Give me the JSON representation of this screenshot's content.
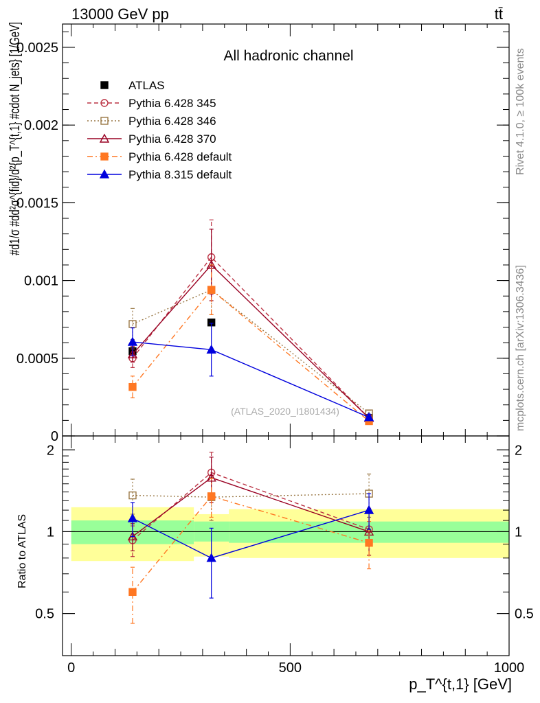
{
  "header": {
    "energy_label": "13000 GeV pp",
    "process_label": "tt̄",
    "rivet_label": "Rivet 4.1.0, ≥ 100k events",
    "source_label": "mcplots.cern.ch [arXiv:1306.3436]"
  },
  "chart_data": [
    {
      "type": "scatter",
      "panel": "main",
      "title": "All hadronic channel",
      "watermark": "(ATLAS_2020_I1801434)",
      "ylabel": "#d1/σ #dd²σ^{fid}/d²{p_T^{t,1} #cdot N_jets} [1/GeV]",
      "xlim": [
        -20,
        1000
      ],
      "ylim": [
        0,
        0.00265
      ],
      "yticks": [
        0,
        0.0005,
        0.001,
        0.0015,
        0.002,
        0.0025
      ],
      "ytick_labels": [
        "0",
        "0.0005",
        "0.001",
        "0.0015",
        "0.002",
        "0.0025"
      ],
      "x": [
        140,
        320,
        680
      ],
      "series": [
        {
          "name": "ATLAS",
          "color": "#000000",
          "marker": "square-filled",
          "line": "none",
          "values": [
            0.000545,
            0.00073,
            0.000115
          ],
          "err": [
            5e-06,
            5e-06,
            5e-06
          ]
        },
        {
          "name": "Pythia 6.428 345",
          "color": "#bb3344",
          "marker": "circle-open",
          "line": "dashed",
          "values": [
            0.0005,
            0.00115,
            0.000115
          ],
          "err": [
            6e-05,
            0.00024,
            2e-05
          ]
        },
        {
          "name": "Pythia 6.428 346",
          "color": "#997744",
          "marker": "square-open",
          "line": "dotted",
          "values": [
            0.00072,
            0.00094,
            0.000145
          ],
          "err": [
            0.0001,
            0.00016,
            2e-05
          ]
        },
        {
          "name": "Pythia 6.428 370",
          "color": "#990022",
          "marker": "triangle-open",
          "line": "solid",
          "values": [
            0.000525,
            0.0011,
            0.000115
          ],
          "err": [
            5e-05,
            0.00023,
            2e-05
          ]
        },
        {
          "name": "Pythia 6.428 default",
          "color": "#ff7722",
          "marker": "square-filled",
          "line": "dashdot",
          "values": [
            0.000315,
            0.00094,
            9.5e-05
          ],
          "err": [
            7e-05,
            0.00016,
            2e-05
          ]
        },
        {
          "name": "Pythia 8.315 default",
          "color": "#0000dd",
          "marker": "triangle-filled",
          "line": "solid",
          "values": [
            0.000605,
            0.000555,
            0.00012
          ],
          "err": [
            9e-05,
            0.00017,
            2e-05
          ]
        }
      ]
    },
    {
      "type": "scatter",
      "panel": "ratio",
      "ylabel": "Ratio to ATLAS",
      "xlabel": "p_T^{t,1} [GeV]",
      "xlim": [
        -20,
        1000
      ],
      "ylim": [
        0.35,
        2.25
      ],
      "yticks": [
        0.5,
        1,
        2
      ],
      "ytick_labels": [
        "0.5",
        "1",
        "2"
      ],
      "xticks": [
        0,
        500,
        1000
      ],
      "xtick_labels": [
        "0",
        "500",
        "1000"
      ],
      "x": [
        140,
        320,
        680
      ],
      "bands": [
        {
          "x0": 0,
          "x1": 280,
          "green": [
            0.9,
            1.1
          ],
          "yellow": [
            0.78,
            1.23
          ]
        },
        {
          "x0": 280,
          "x1": 360,
          "green": [
            0.92,
            1.09
          ],
          "yellow": [
            0.81,
            1.16
          ]
        },
        {
          "x0": 360,
          "x1": 1000,
          "green": [
            0.91,
            1.09
          ],
          "yellow": [
            0.8,
            1.21
          ]
        }
      ],
      "series": [
        {
          "name": "Pythia 6.428 345",
          "color": "#bb3344",
          "marker": "circle-open",
          "line": "dashed",
          "values": [
            0.93,
            1.65,
            1.02
          ],
          "err": [
            0.12,
            0.31,
            0.2
          ]
        },
        {
          "name": "Pythia 6.428 346",
          "color": "#997744",
          "marker": "square-open",
          "line": "dotted",
          "values": [
            1.36,
            1.34,
            1.38
          ],
          "err": [
            0.2,
            0.24,
            0.25
          ]
        },
        {
          "name": "Pythia 6.428 370",
          "color": "#990022",
          "marker": "triangle-open",
          "line": "solid",
          "values": [
            0.96,
            1.58,
            1.0
          ],
          "err": [
            0.11,
            0.3,
            0.18
          ]
        },
        {
          "name": "Pythia 6.428 default",
          "color": "#ff7722",
          "marker": "square-filled",
          "line": "dashdot",
          "values": [
            0.6,
            1.35,
            0.91
          ],
          "err": [
            0.14,
            0.22,
            0.18
          ]
        },
        {
          "name": "Pythia 8.315 default",
          "color": "#0000dd",
          "marker": "triangle-filled",
          "line": "solid",
          "values": [
            1.12,
            0.8,
            1.2
          ],
          "err": [
            0.16,
            0.23,
            0.18
          ]
        }
      ]
    }
  ]
}
